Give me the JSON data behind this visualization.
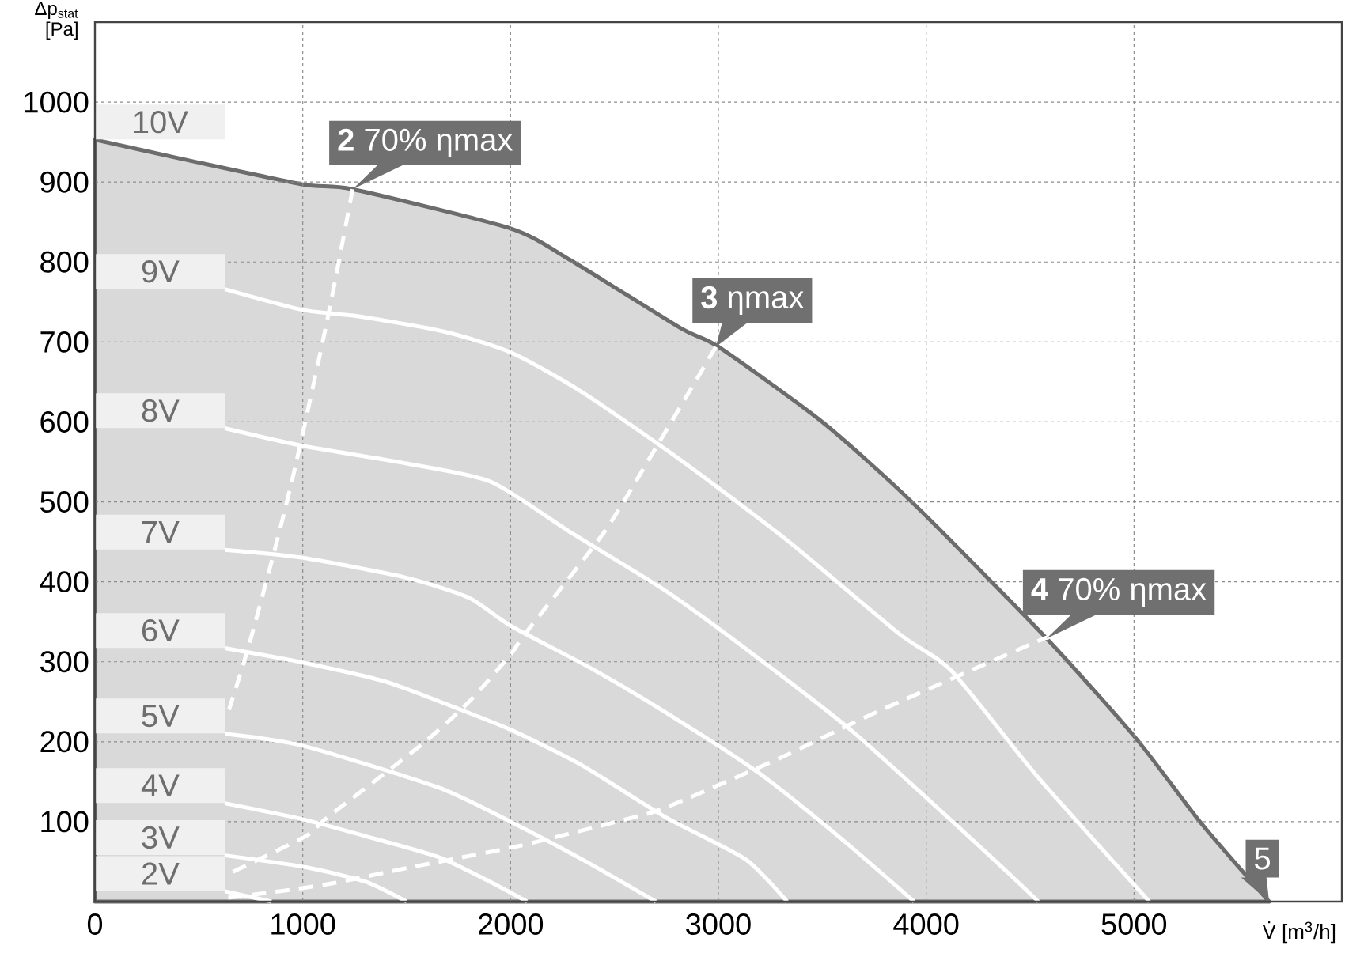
{
  "chart_data": {
    "type": "line",
    "xlabel": "V̇ [m$^{3}$/h]",
    "ylabel": "Δp$_{stat}$ [Pa]",
    "xlim": [
      0,
      6000
    ],
    "ylim": [
      0,
      1100
    ],
    "xticks": [
      0,
      1000,
      2000,
      3000,
      4000,
      5000
    ],
    "yticks": [
      100,
      200,
      300,
      400,
      500,
      600,
      700,
      800,
      900,
      1000
    ],
    "grid": true,
    "legend": "left",
    "series": [
      {
        "name": "10V",
        "type": "area",
        "color": "#d9d9d9",
        "x": [
          0,
          400,
          1000,
          1240,
          2000,
          2290,
          2820,
          3000,
          3500,
          3930,
          4580,
          5010,
          5320,
          5650
        ],
        "values": [
          953,
          930,
          897,
          891,
          842,
          802,
          717,
          694,
          600,
          500,
          329,
          204,
          99,
          0
        ]
      },
      {
        "name": "9V",
        "color": "#ffffff",
        "x": [
          625,
          1000,
          1270,
          1680,
          2000,
          2340,
          2820,
          3340,
          3870,
          4120,
          4530,
          5074
        ],
        "values": [
          766,
          740,
          732,
          713,
          687,
          638,
          552,
          450,
          335,
          289,
          158,
          0
        ]
      },
      {
        "name": "8V",
        "color": "#ffffff",
        "x": [
          625,
          1000,
          1500,
          1906,
          2300,
          2750,
          3133,
          3640,
          4270,
          4540
        ],
        "values": [
          592,
          570,
          548,
          525,
          460,
          388,
          316,
          214,
          66,
          0
        ]
      },
      {
        "name": "7V",
        "color": "#ffffff",
        "x": [
          625,
          1000,
          1500,
          1800,
          2000,
          2400,
          2800,
          3200,
          3590,
          3942
        ],
        "values": [
          440,
          430,
          405,
          380,
          345,
          290,
          228,
          160,
          79,
          0
        ]
      },
      {
        "name": "6V",
        "color": "#ffffff",
        "x": [
          625,
          1000,
          1400,
          1730,
          2000,
          2340,
          2750,
          3130,
          3331
        ],
        "values": [
          317,
          299,
          275,
          243,
          215,
          171,
          105,
          53,
          0
        ]
      },
      {
        "name": "5V",
        "color": "#ffffff",
        "x": [
          625,
          1000,
          1650,
          2000,
          2350,
          2700
        ],
        "values": [
          210,
          195,
          143,
          100,
          52,
          0
        ]
      },
      {
        "name": "4V",
        "color": "#ffffff",
        "x": [
          625,
          1000,
          1300,
          1650,
          1900,
          2080
        ],
        "values": [
          123,
          103,
          82,
          56,
          25,
          0
        ]
      },
      {
        "name": "3V",
        "color": "#ffffff",
        "x": [
          623,
          1015,
          1300,
          1500
        ],
        "values": [
          58,
          43,
          25,
          0
        ]
      },
      {
        "name": "2V",
        "color": "#ffffff",
        "x": [
          625,
          850
        ],
        "values": [
          13,
          0
        ]
      },
      {
        "color": "#ffffff",
        "line_style": "dashed",
        "x": [
          1240,
          1120,
          965,
          865,
          736,
          645
        ],
        "values": [
          891,
          730,
          545,
          440,
          316,
          240
        ]
      },
      {
        "color": "#ffffff",
        "line_style": "dashed",
        "x": [
          2988,
          2700,
          2450,
          2070,
          2000,
          1800,
          1575,
          1117,
          1015,
          645
        ],
        "values": [
          694,
          568,
          462,
          335,
          309,
          250,
          197,
          105,
          82,
          35
        ]
      },
      {
        "color": "#ffffff",
        "line_style": "dashed",
        "x": [
          4578,
          4530,
          3760,
          3300,
          2750,
          2540,
          2030,
          1520,
          1145,
          890,
          640
        ],
        "values": [
          329,
          325,
          237,
          180,
          118,
          102,
          69,
          43,
          23,
          13,
          5
        ]
      }
    ],
    "annotations": [
      {
        "text": "**2** 70% ηmax",
        "x": 1240,
        "y": 891
      },
      {
        "text": "**3** ηmax",
        "x": 2988,
        "y": 694
      },
      {
        "text": "**4** 70% ηmax",
        "x": 4578,
        "y": 329
      },
      {
        "text": "5",
        "x": 5650,
        "y": 0
      }
    ]
  }
}
